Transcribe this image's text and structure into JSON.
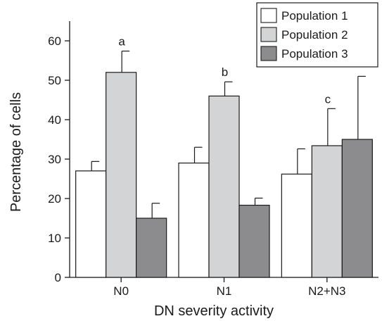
{
  "chart_data": {
    "type": "bar",
    "xlabel": "DN severity activity",
    "ylabel": "Percentage of cells",
    "ylim": [
      0,
      65
    ],
    "yticks": [
      0,
      10,
      20,
      30,
      40,
      50,
      60
    ],
    "categories": [
      "N0",
      "N1",
      "N2+N3"
    ],
    "series": [
      {
        "name": "Population 1",
        "values": [
          27,
          29,
          26.2
        ],
        "errors": [
          2.4,
          4.0,
          6.4
        ],
        "color": "#ffffff"
      },
      {
        "name": "Population 2",
        "values": [
          52,
          46,
          33.4
        ],
        "errors": [
          5.4,
          3.6,
          9.4
        ],
        "color": "#d3d4d6"
      },
      {
        "name": "Population 3",
        "values": [
          15,
          18.3,
          35
        ],
        "errors": [
          3.8,
          1.8,
          16
        ],
        "color": "#8c8c8e"
      }
    ],
    "annotations": [
      {
        "text": "a",
        "category": 0,
        "series": 1
      },
      {
        "text": "b",
        "category": 1,
        "series": 1
      },
      {
        "text": "c",
        "category": 2,
        "series": 1
      }
    ],
    "legend_position": "top-right",
    "grid": false
  }
}
